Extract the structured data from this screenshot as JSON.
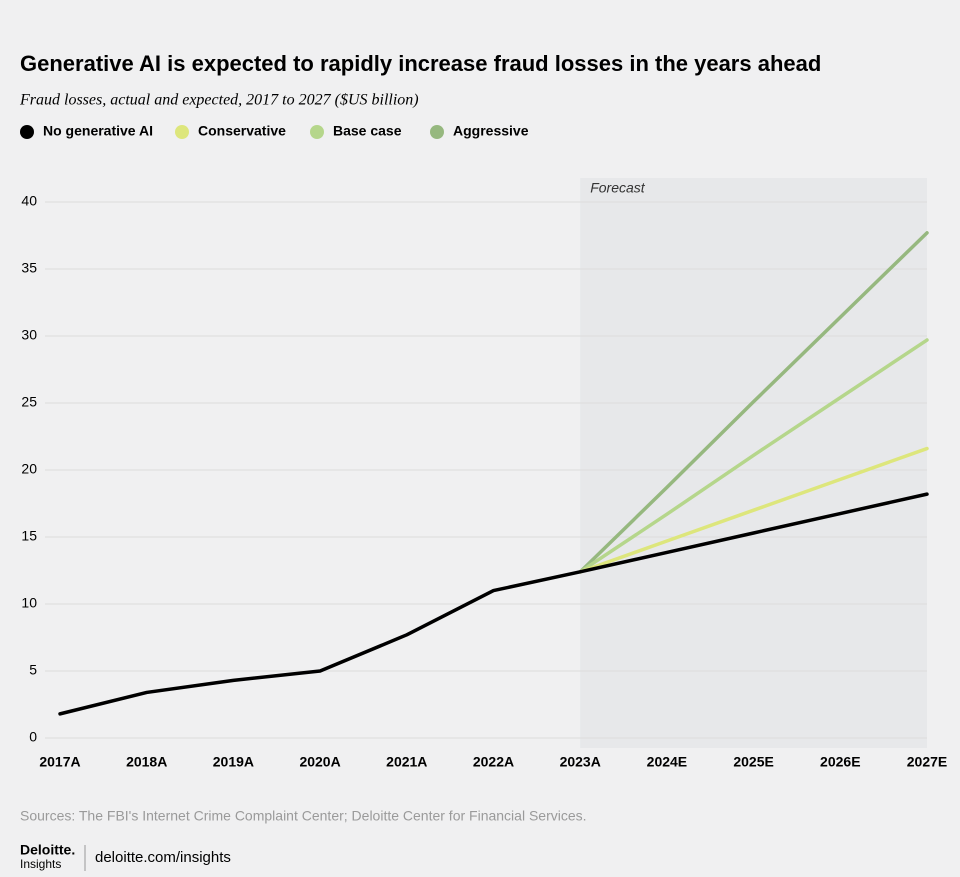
{
  "chart_data": {
    "type": "line",
    "title": "Generative AI is expected to rapidly increase fraud losses in the years ahead",
    "subtitle": "Fraud losses, actual and expected, 2017 to 2027 ($US billion)",
    "annotation": "Forecast",
    "categories": [
      "2017A",
      "2018A",
      "2019A",
      "2020A",
      "2021A",
      "2022A",
      "2023A",
      "2024E",
      "2025E",
      "2026E",
      "2027E"
    ],
    "series": [
      {
        "name": "No generative AI",
        "color": "#000000",
        "values": [
          1.8,
          3.4,
          4.3,
          5.0,
          7.7,
          11.0,
          12.4,
          13.85,
          15.3,
          16.75,
          18.2
        ]
      },
      {
        "name": "Conservative",
        "color": "#dde67c",
        "values": [
          null,
          null,
          null,
          null,
          null,
          null,
          12.4,
          14.7,
          17.0,
          19.3,
          21.6
        ]
      },
      {
        "name": "Base case",
        "color": "#b5d68b",
        "values": [
          null,
          null,
          null,
          null,
          null,
          null,
          12.4,
          16.7,
          21.1,
          25.4,
          29.7
        ]
      },
      {
        "name": "Aggressive",
        "color": "#96b87f",
        "values": [
          null,
          null,
          null,
          null,
          null,
          null,
          12.4,
          18.7,
          25.1,
          31.4,
          37.7
        ]
      }
    ],
    "ylim": [
      0,
      40
    ],
    "yticks": [
      0,
      5,
      10,
      15,
      20,
      25,
      30,
      35,
      40
    ],
    "grid": true,
    "source": "Sources: The FBI's Internet Crime Complaint Center; Deloitte Center for Financial Services.",
    "brand": "Deloitte.",
    "brand_sub": "Insights",
    "url": "deloitte.com/insights"
  }
}
